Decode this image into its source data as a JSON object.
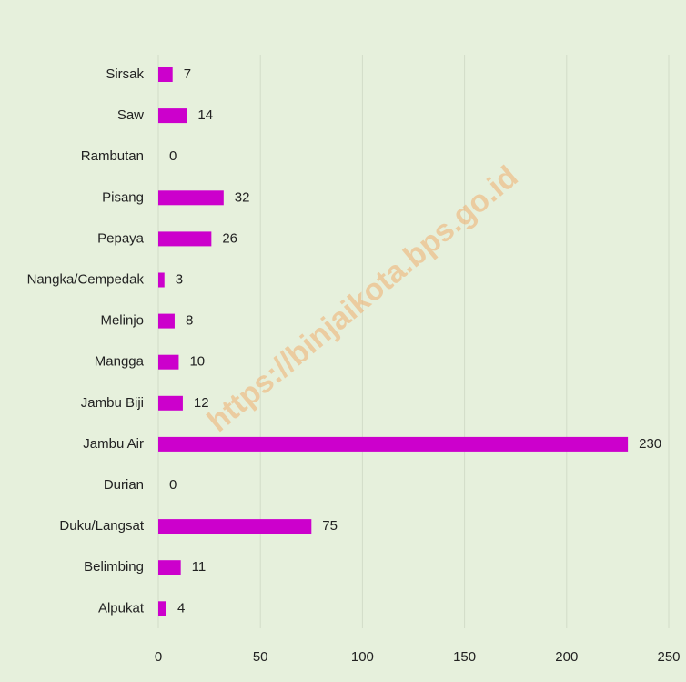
{
  "chart_data": {
    "type": "bar",
    "orientation": "horizontal",
    "categories": [
      "Sirsak",
      "Saw",
      "Rambutan",
      "Pisang",
      "Pepaya",
      "Nangka/Cempedak",
      "Melinjo",
      "Mangga",
      "Jambu Biji",
      "Jambu Air",
      "Durian",
      "Duku/Langsat",
      "Belimbing",
      "Alpukat"
    ],
    "values": [
      7,
      14,
      0,
      32,
      26,
      3,
      8,
      10,
      12,
      230,
      0,
      75,
      11,
      4
    ],
    "color": "#cc00cc",
    "xlim": [
      0,
      250
    ],
    "xticks": [
      0,
      50,
      100,
      150,
      200,
      250
    ],
    "grid": true,
    "watermark": "https://binjaikota.bps.go.id"
  }
}
